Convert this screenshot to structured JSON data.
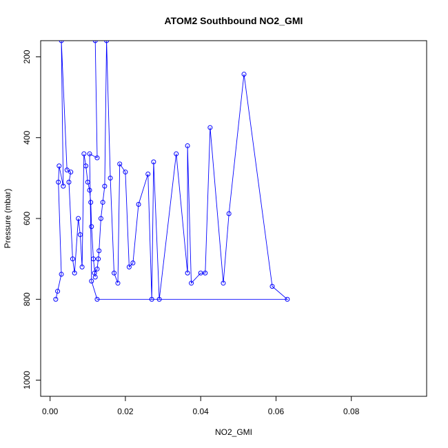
{
  "chart_data": {
    "type": "line",
    "title": "ATOM2 Southbound NO2_GMI",
    "xlabel": "NO2_GMI",
    "ylabel": "Pressure (mbar)",
    "xlim": [
      -0.0025,
      0.1
    ],
    "ylim": [
      1040,
      160
    ],
    "y_inverted": true,
    "grid": false,
    "legend": "none",
    "xticks": [
      0.0,
      0.02,
      0.04,
      0.06,
      0.08
    ],
    "xtick_labels": [
      "0.00",
      "0.02",
      "0.04",
      "0.06",
      "0.08"
    ],
    "yticks": [
      200,
      400,
      600,
      800,
      1000
    ],
    "ytick_labels": [
      "200",
      "400",
      "600",
      "800",
      "1000"
    ],
    "colors": {
      "series": "#0000ff",
      "axis": "#000000",
      "background": "#ffffff"
    },
    "series": [
      {
        "marker": "open-circle",
        "points": [
          [
            0.0015,
            800
          ],
          [
            0.002,
            780
          ],
          [
            0.003,
            738
          ],
          [
            0.0022,
            510
          ],
          [
            0.0024,
            470
          ],
          [
            0.0035,
            520
          ],
          [
            0.003,
            160
          ],
          [
            0.0045,
            480
          ],
          [
            0.0055,
            485
          ],
          [
            0.005,
            510
          ],
          [
            0.006,
            700
          ],
          [
            0.0065,
            735
          ],
          [
            0.0075,
            600
          ],
          [
            0.008,
            640
          ],
          [
            0.0085,
            720
          ],
          [
            0.009,
            440
          ],
          [
            0.0095,
            470
          ],
          [
            0.01,
            510
          ],
          [
            0.0105,
            530
          ],
          [
            0.0108,
            560
          ],
          [
            0.011,
            620
          ],
          [
            0.0115,
            700
          ],
          [
            0.012,
            745
          ],
          [
            0.0118,
            735
          ],
          [
            0.0125,
            725
          ],
          [
            0.0128,
            700
          ],
          [
            0.013,
            680
          ],
          [
            0.0135,
            600
          ],
          [
            0.014,
            560
          ],
          [
            0.0145,
            520
          ],
          [
            0.015,
            160
          ],
          [
            0.016,
            500
          ],
          [
            0.017,
            735
          ],
          [
            0.018,
            760
          ],
          [
            0.0185,
            465
          ],
          [
            0.02,
            485
          ],
          [
            0.021,
            720
          ],
          [
            0.022,
            710
          ],
          [
            0.0235,
            565
          ],
          [
            0.026,
            490
          ],
          [
            0.027,
            800
          ],
          [
            0.0275,
            460
          ],
          [
            0.029,
            800
          ],
          [
            0.0335,
            440
          ],
          [
            0.0365,
            735
          ],
          [
            0.0365,
            420
          ],
          [
            0.0375,
            760
          ],
          [
            0.04,
            735
          ],
          [
            0.0412,
            735
          ],
          [
            0.0425,
            375
          ],
          [
            0.046,
            760
          ],
          [
            0.0475,
            588
          ],
          [
            0.0515,
            243
          ],
          [
            0.059,
            768
          ],
          [
            0.063,
            800
          ],
          [
            0.0125,
            800
          ],
          [
            0.011,
            755
          ],
          [
            0.0105,
            440
          ],
          [
            0.0125,
            450
          ],
          [
            0.012,
            160
          ]
        ]
      }
    ]
  }
}
